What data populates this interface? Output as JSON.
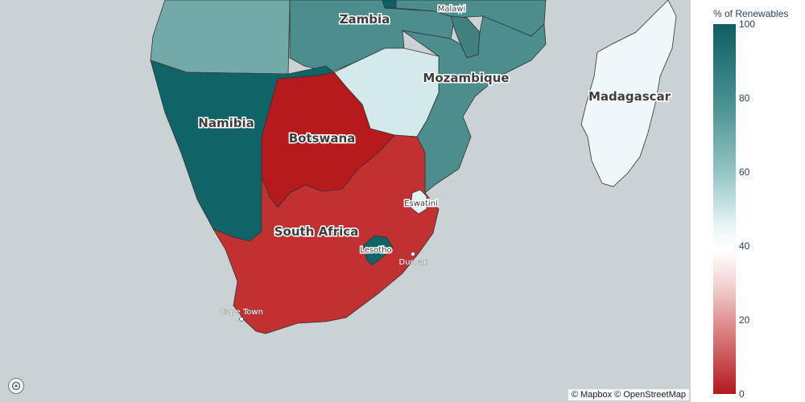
{
  "colorbar": {
    "title": "% of Renewables",
    "ticks": [
      "100",
      "80",
      "60",
      "40",
      "20",
      "0"
    ]
  },
  "countries": {
    "zambia": "Zambia",
    "malawi": "Malawi",
    "mozambique": "Mozambique",
    "madagascar": "Madagascar",
    "namibia": "Namibia",
    "botswana": "Botswana",
    "south_africa": "South Africa",
    "eswatini": "Eswatini",
    "lesotho": "Lesotho"
  },
  "cities": {
    "durban": "Durban",
    "cape_town": "Cape Town"
  },
  "attribution": "© Mapbox © OpenStreetMap",
  "colors": {
    "ocean": "#cad2d3",
    "high": "#0d5f63",
    "mid": "#ffffff",
    "low": "#b2191b"
  }
}
